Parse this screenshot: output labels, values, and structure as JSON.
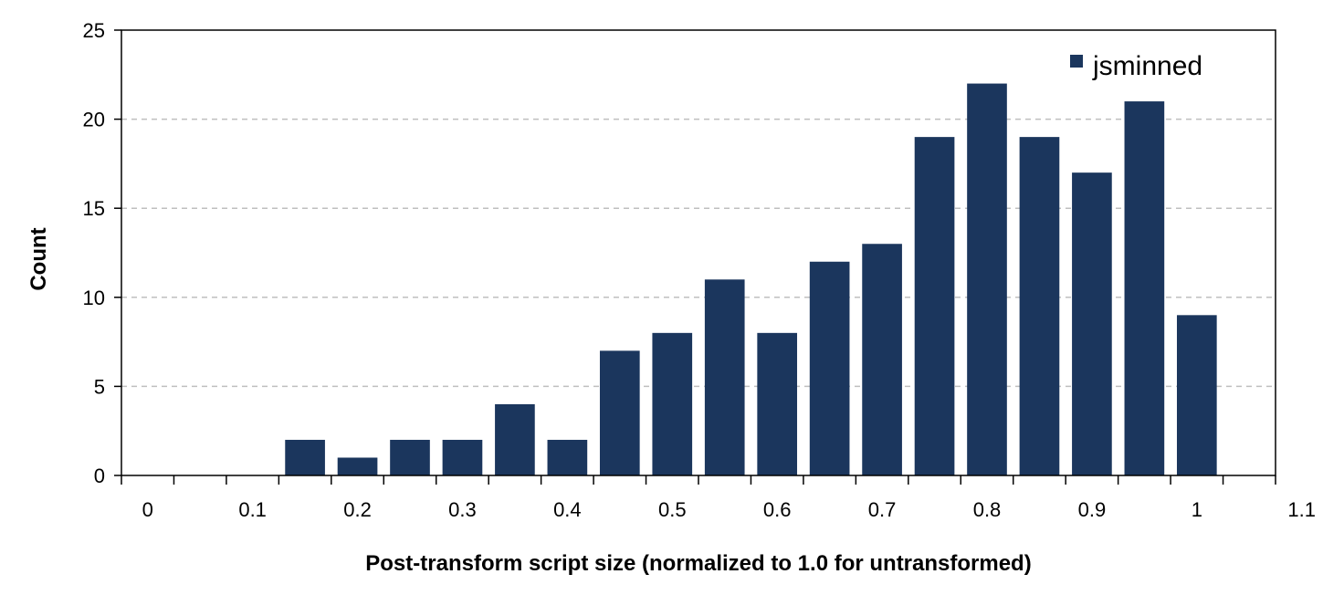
{
  "chart_data": {
    "type": "bar",
    "title": "",
    "xlabel": "Post-transform script size (normalized to 1.0 for untransformed)",
    "ylabel": "Count",
    "x_tick_labels": [
      "0",
      "0.1",
      "0.2",
      "0.3",
      "0.4",
      "0.5",
      "0.6",
      "0.7",
      "0.8",
      "0.9",
      "1",
      "1.1"
    ],
    "y_tick_labels": [
      "0",
      "5",
      "10",
      "15",
      "20",
      "25"
    ],
    "ylim": [
      0,
      25
    ],
    "xlim": [
      0,
      1.1
    ],
    "grid": "horizontal dashed",
    "legend_position": "top-right",
    "categories": [
      "0.025",
      "0.075",
      "0.125",
      "0.175",
      "0.225",
      "0.275",
      "0.325",
      "0.375",
      "0.425",
      "0.475",
      "0.525",
      "0.575",
      "0.625",
      "0.675",
      "0.725",
      "0.775",
      "0.825",
      "0.875",
      "0.925",
      "0.975",
      "1.025",
      "1.075"
    ],
    "series": [
      {
        "name": "jsminned",
        "color": "#1b365d",
        "x": [
          0.025,
          0.075,
          0.125,
          0.175,
          0.225,
          0.275,
          0.325,
          0.375,
          0.425,
          0.475,
          0.525,
          0.575,
          0.625,
          0.675,
          0.725,
          0.775,
          0.825,
          0.875,
          0.925,
          0.975,
          1.025,
          1.075
        ],
        "values": [
          0,
          0,
          0,
          2,
          1,
          2,
          2,
          4,
          2,
          7,
          8,
          11,
          8,
          12,
          13,
          19,
          22,
          19,
          17,
          21,
          9,
          0
        ]
      }
    ],
    "colors": {
      "bar": "#1b365d",
      "grid": "#bfbfbf",
      "axis": "#000000"
    }
  }
}
